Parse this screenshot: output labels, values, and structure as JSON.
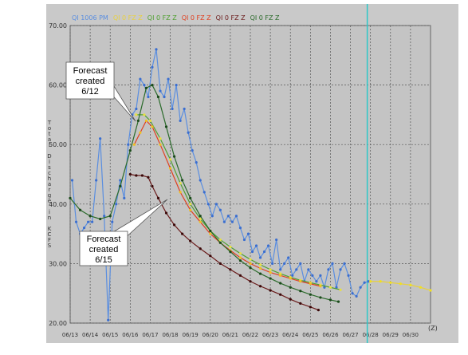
{
  "chart_data": {
    "type": "line",
    "y_axis_label": "Total Discharge in KCFS",
    "x_unit_label": "(Z)",
    "xlim": [
      13,
      31
    ],
    "xticks": [
      {
        "value": 13,
        "label": "06/13"
      },
      {
        "value": 14,
        "label": "06/14"
      },
      {
        "value": 15,
        "label": "06/15"
      },
      {
        "value": 16,
        "label": "06/16"
      },
      {
        "value": 17,
        "label": "06/17"
      },
      {
        "value": 18,
        "label": "06/18"
      },
      {
        "value": 19,
        "label": "06/19"
      },
      {
        "value": 20,
        "label": "06/20"
      },
      {
        "value": 21,
        "label": "06/21"
      },
      {
        "value": 22,
        "label": "06/22"
      },
      {
        "value": 23,
        "label": "06/23"
      },
      {
        "value": 24,
        "label": "06/24"
      },
      {
        "value": 25,
        "label": "06/25"
      },
      {
        "value": 26,
        "label": "06/26"
      },
      {
        "value": 27,
        "label": "06/27"
      },
      {
        "value": 28,
        "label": "06/28"
      },
      {
        "value": 29,
        "label": "06/29"
      },
      {
        "value": 30,
        "label": "06/30"
      }
    ],
    "ylim": [
      20,
      70
    ],
    "yticks": [
      {
        "value": 20,
        "label": "20.00"
      },
      {
        "value": 30,
        "label": "30.00"
      },
      {
        "value": 40,
        "label": "40.00"
      },
      {
        "value": 50,
        "label": "50.00"
      },
      {
        "value": 60,
        "label": "60.00"
      },
      {
        "value": 70,
        "label": "70.00"
      }
    ],
    "grid": true,
    "current_time_x": 27.84,
    "current_time_color": "#2ec8c8",
    "series": [
      {
        "name": "QI 1006 PM",
        "color": "#5a8ee0",
        "marker_color": "#3a6ed0",
        "x": [
          13.1,
          13.3,
          13.5,
          13.7,
          13.9,
          14.1,
          14.3,
          14.5,
          14.7,
          14.9,
          15.1,
          15.3,
          15.5,
          15.7,
          15.9,
          16.1,
          16.3,
          16.5,
          16.7,
          16.9,
          17.1,
          17.3,
          17.5,
          17.7,
          17.9,
          18.1,
          18.3,
          18.5,
          18.7,
          18.9,
          19.1,
          19.3,
          19.5,
          19.7,
          19.9,
          20.1,
          20.3,
          20.5,
          20.7,
          20.9,
          21.1,
          21.3,
          21.5,
          21.7,
          21.9,
          22.1,
          22.3,
          22.5,
          22.7,
          22.9,
          23.1,
          23.3,
          23.5,
          23.7,
          23.9,
          24.1,
          24.3,
          24.5,
          24.7,
          24.9,
          25.1,
          25.3,
          25.5,
          25.7,
          25.9,
          26.1,
          26.3,
          26.5,
          26.7,
          26.9,
          27.1,
          27.3,
          27.5,
          27.7,
          27.9
        ],
        "values": [
          44,
          37,
          35,
          36,
          37,
          37,
          44,
          51,
          38,
          20.5,
          37,
          40,
          44,
          41,
          50,
          55,
          56,
          61,
          60,
          58,
          63,
          66,
          59,
          58,
          61,
          56,
          60,
          54,
          56,
          52,
          49,
          47,
          44,
          42,
          40,
          38,
          40,
          39,
          37,
          38,
          37,
          38,
          36,
          34,
          35,
          32,
          33,
          31,
          32,
          33,
          30,
          34,
          29,
          30,
          31,
          28,
          29,
          30,
          27,
          29,
          28,
          27,
          28,
          26,
          29,
          30,
          26,
          29,
          30,
          28,
          25,
          24.5,
          26,
          26.8,
          27
        ]
      },
      {
        "name": "QI 0 FZ Z",
        "color": "#e8d040",
        "marker_color": "#f0e020",
        "x": [
          28,
          28.5,
          29,
          29.5,
          30,
          30.5,
          31
        ],
        "values": [
          27,
          27,
          26.8,
          26.6,
          26.4,
          26,
          25.5
        ]
      },
      {
        "name": "QI 0 FZ Z",
        "color": "#50a030",
        "marker_color": "#e8e040",
        "x": [
          16.3,
          16.7,
          17,
          17.5,
          18,
          18.5,
          19,
          19.5,
          20,
          20.5,
          21,
          21.5,
          22,
          22.5,
          23,
          23.5,
          24,
          24.5,
          25,
          25.5,
          26,
          26.5
        ],
        "values": [
          55,
          55,
          54,
          51,
          47.5,
          43.5,
          40,
          37.5,
          35.5,
          34,
          32.8,
          31.7,
          30.7,
          29.8,
          29,
          28.3,
          27.7,
          27.2,
          26.8,
          26.4,
          26,
          25.6
        ]
      },
      {
        "name": "QI 0 FZ Z",
        "color": "#e04020",
        "marker_color": "#f0c020",
        "x": [
          16.2,
          16.5,
          16.8,
          17.1,
          17.5,
          18,
          18.5,
          19,
          19.5,
          20,
          20.5,
          21,
          21.5,
          22,
          22.5,
          23,
          23.5,
          24,
          24.5,
          25,
          25.5
        ],
        "values": [
          50,
          52,
          54,
          53,
          50,
          46,
          42,
          39,
          37,
          35,
          33.5,
          32.2,
          31,
          30,
          29.2,
          28.5,
          28,
          27.5,
          27,
          26.6,
          26.2
        ]
      },
      {
        "name": "QI 0 FZ Z",
        "color": "#6a1a1a",
        "marker_color": "#3a0808",
        "x": [
          16,
          16.3,
          16.6,
          16.9,
          17.1,
          17.4,
          17.8,
          18.2,
          18.6,
          19,
          19.5,
          20,
          20.5,
          21,
          21.5,
          22,
          22.5,
          23,
          23.5,
          24,
          24.5,
          25,
          25.4
        ],
        "values": [
          45,
          44.8,
          44.8,
          44.5,
          43,
          41,
          38.5,
          36.5,
          35,
          33.8,
          32.5,
          31.3,
          30,
          29,
          28,
          27,
          26.2,
          25.5,
          24.8,
          24,
          23.3,
          22.7,
          22.2
        ]
      },
      {
        "name": "QI 0 FZ Z",
        "color": "#2a6a2a",
        "marker_color": "#1a4a1a",
        "x": [
          13,
          13.5,
          14,
          14.5,
          15,
          15.5,
          16,
          16.4,
          16.8,
          17.1,
          17.4,
          17.8,
          18.2,
          18.6,
          19,
          19.5,
          20,
          20.5,
          21,
          21.5,
          22,
          22.5,
          23,
          23.5,
          24,
          24.5,
          25,
          25.5,
          26,
          26.4
        ],
        "values": [
          41,
          39,
          38,
          37.5,
          38,
          43,
          49,
          54,
          59.5,
          60,
          58,
          53,
          48,
          44,
          41,
          38,
          35.5,
          33.5,
          32,
          30.5,
          29.3,
          28.3,
          27.5,
          26.7,
          26,
          25.4,
          24.8,
          24.3,
          23.9,
          23.6
        ]
      }
    ],
    "callouts": [
      {
        "lines": [
          "Forecast",
          "created",
          "6/12"
        ]
      },
      {
        "lines": [
          "Forecast",
          "created",
          "6/15"
        ]
      }
    ]
  }
}
